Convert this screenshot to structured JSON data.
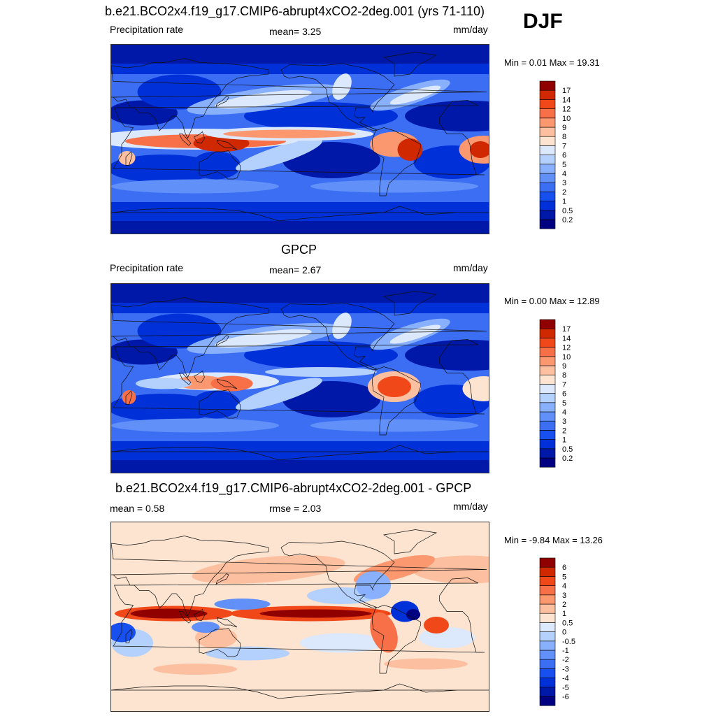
{
  "season": "DJF",
  "panels": [
    {
      "title": "b.e21.BCO2x4.f19_g17.CMIP6-abrupt4xCO2-2deg.001 (yrs 71-110)",
      "left_label": "Precipitation rate",
      "center_label": "mean=   3.25",
      "units": "mm/day",
      "minmax": "Min =   0.01 Max =  19.31",
      "field": "model",
      "colorbar": {
        "labels": [
          "0.2",
          "0.5",
          "1",
          "2",
          "3",
          "4",
          "5",
          "6",
          "7",
          "8",
          "9",
          "10",
          "12",
          "14",
          "17"
        ],
        "colors": [
          "#000080",
          "#0018a8",
          "#0030d8",
          "#1850f0",
          "#3c6ef4",
          "#6090f8",
          "#88b0fc",
          "#b4d0fc",
          "#dce8fc",
          "#fce4d0",
          "#fcc0a0",
          "#fc9870",
          "#f87048",
          "#f04818",
          "#d02800",
          "#900000"
        ]
      }
    },
    {
      "title": "GPCP",
      "left_label": "Precipitation rate",
      "center_label": "mean=   2.67",
      "units": "mm/day",
      "minmax": "Min =   0.00 Max =  12.89",
      "field": "obs",
      "colorbar": {
        "labels": [
          "0.2",
          "0.5",
          "1",
          "2",
          "3",
          "4",
          "5",
          "6",
          "7",
          "8",
          "9",
          "10",
          "12",
          "14",
          "17"
        ],
        "colors": [
          "#000080",
          "#0018a8",
          "#0030d8",
          "#1850f0",
          "#3c6ef4",
          "#6090f8",
          "#88b0fc",
          "#b4d0fc",
          "#dce8fc",
          "#fce4d0",
          "#fcc0a0",
          "#fc9870",
          "#f87048",
          "#f04818",
          "#d02800",
          "#900000"
        ]
      }
    },
    {
      "title": "b.e21.BCO2x4.f19_g17.CMIP6-abrupt4xCO2-2deg.001 - GPCP",
      "left_label": "mean =   0.58",
      "center_label": "rmse =   2.03",
      "units": "mm/day",
      "minmax": "Min =  -9.84 Max =  13.26",
      "field": "diff",
      "colorbar": {
        "labels": [
          "-6",
          "-5",
          "-4",
          "-3",
          "-2",
          "-1",
          "-0.5",
          "0",
          "0.5",
          "1",
          "2",
          "3",
          "4",
          "5",
          "6"
        ],
        "colors": [
          "#000080",
          "#0018a8",
          "#0030d8",
          "#1850f0",
          "#3c6ef4",
          "#6090f8",
          "#88b0fc",
          "#b4d0fc",
          "#dce8fc",
          "#fce4d0",
          "#fcc0a0",
          "#fc9870",
          "#f87048",
          "#f04818",
          "#d02800",
          "#900000"
        ]
      }
    }
  ]
}
